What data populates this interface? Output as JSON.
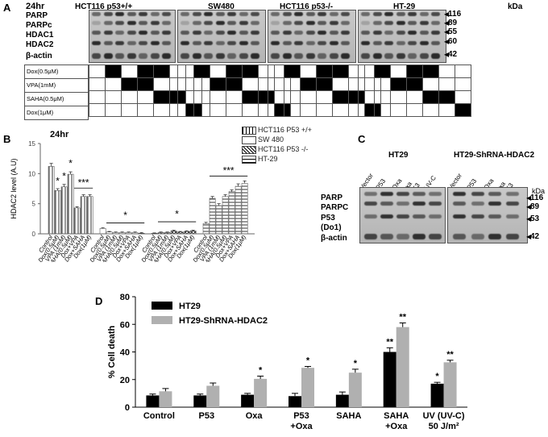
{
  "panelA": {
    "letter": "A",
    "time": "24hr",
    "kda": "kDa",
    "cell_lines": [
      "HCT116 p53+/+",
      "SW480",
      "HCT116 p53-/-",
      "HT-29"
    ],
    "row_labels": [
      "PARP",
      "PARPc",
      "HDAC1",
      "HDAC2",
      "β-actin"
    ],
    "kda_markers": [
      "116",
      "89",
      "55",
      "60",
      "42"
    ],
    "treatments": [
      "Dox(0.5μM)",
      "VPA(1mM)",
      "SAHA(0.5μM)",
      "Dox(1μM)"
    ],
    "matrix": [
      [
        0,
        1,
        0,
        1,
        1,
        0,
        0
      ],
      [
        0,
        0,
        1,
        1,
        0,
        0,
        0
      ],
      [
        0,
        0,
        0,
        0,
        1,
        1,
        0
      ],
      [
        0,
        0,
        0,
        0,
        0,
        0,
        1
      ]
    ]
  },
  "panelB": {
    "letter": "B",
    "time": "24hr",
    "ylabel": "HDAC2 level (A.U)",
    "significance": [
      "*",
      "*",
      "*",
      "***",
      "*",
      "*",
      "***"
    ],
    "chart_data": {
      "type": "bar",
      "ylabel": "HDAC2 level (A.U)",
      "ylim": [
        0,
        15
      ],
      "yticks": [
        0,
        5,
        10,
        15
      ],
      "categories": [
        "Control",
        "Dox(0.5μM)",
        "VPA (1mM)",
        "SAHA(0.5μM)",
        "Dox+VPA",
        "Dox+SAHA",
        "Dox(1μM)"
      ],
      "series": [
        {
          "name": "HCT116 P53 +/+",
          "values": [
            11.2,
            7.2,
            7.8,
            9.9,
            4.3,
            6.2,
            6.2
          ],
          "errors": [
            0.5,
            0.3,
            0.4,
            0.4,
            0.2,
            0.3,
            0.3
          ]
        },
        {
          "name": "SW 480",
          "values": [
            0.9,
            0.3,
            0.2,
            0.2,
            0.2,
            0.2,
            0.1
          ],
          "errors": [
            0.1,
            0.1,
            0.1,
            0.1,
            0.1,
            0.1,
            0.1
          ]
        },
        {
          "name": "HCT116 P53 -/-",
          "values": [
            0.1,
            0.2,
            0.2,
            0.5,
            0.3,
            0.4,
            0.5
          ],
          "errors": [
            0.05,
            0.1,
            0.1,
            0.1,
            0.1,
            0.1,
            0.1
          ]
        },
        {
          "name": "HT-29",
          "values": [
            1.7,
            5.9,
            4.7,
            6.2,
            7.0,
            7.9,
            8.4
          ],
          "errors": [
            0.2,
            0.3,
            0.3,
            0.3,
            0.3,
            0.4,
            0.4
          ]
        }
      ],
      "legend_position": "top-right"
    }
  },
  "panelC": {
    "letter": "C",
    "group1": "HT29",
    "group2": "HT29-ShRNA-HDAC2",
    "lanes1": [
      "Vector",
      "P53",
      "Oxa",
      "Oxa\n+P53",
      "UV-C"
    ],
    "lanes2": [
      "Vector",
      "P53",
      "Oxa",
      "Oxa\n+P53"
    ],
    "row_labels": [
      "PARP",
      "PARPC",
      "P53",
      "(Do1)",
      "β-actin"
    ],
    "kda": "kDa",
    "kda_markers": [
      "116",
      "89",
      "53",
      "42"
    ]
  },
  "panelD": {
    "letter": "D",
    "significance_series1": [
      "",
      "",
      "",
      "",
      "",
      "**",
      "*"
    ],
    "significance_series2": [
      "",
      "",
      "*",
      "*",
      "*",
      "**",
      "**"
    ],
    "chart_data": {
      "type": "bar",
      "ylabel": "% Cell death",
      "ylim": [
        0,
        80
      ],
      "yticks": [
        0,
        20,
        40,
        60,
        80
      ],
      "categories": [
        "Control",
        "P53",
        "Oxa",
        "P53 +Oxa",
        "SAHA",
        "SAHA +Oxa",
        "UV (UV-C) 50 J/m²"
      ],
      "series": [
        {
          "name": "HT29",
          "color": "#000000",
          "values": [
            8.5,
            8.5,
            9,
            8,
            9,
            40,
            17
          ],
          "errors": [
            1,
            1,
            1,
            2,
            2,
            3,
            1
          ]
        },
        {
          "name": "HT29-ShRNA-HDAC2",
          "color": "#b0b0b0",
          "values": [
            11.5,
            15.5,
            20.5,
            28.5,
            25,
            58,
            32.5
          ],
          "errors": [
            2,
            2,
            2,
            1,
            2.5,
            3,
            1.5
          ]
        }
      ],
      "legend_position": "top-left"
    }
  }
}
